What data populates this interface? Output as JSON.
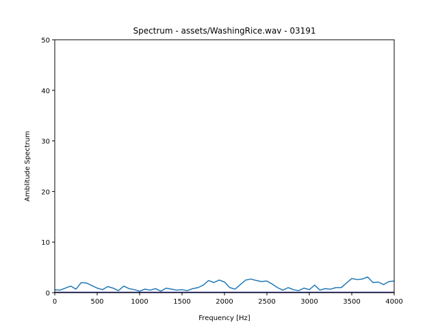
{
  "chart_data": {
    "type": "line",
    "title": "Spectrum - assets/WashingRice.wav - 03191",
    "xlabel": "Frequency [Hz]",
    "ylabel": "Amblitude Spectrum",
    "xlim": [
      0,
      4000
    ],
    "ylim": [
      0,
      50
    ],
    "xticks": [
      0,
      500,
      1000,
      1500,
      2000,
      2500,
      3000,
      3500,
      4000
    ],
    "yticks": [
      0,
      10,
      20,
      30,
      40,
      50
    ],
    "grid": false,
    "colors": {
      "series": "#1f77b4",
      "baseline": "#000080",
      "axes": "#000000"
    },
    "baseline_value": 0,
    "series": [
      {
        "x": [
          0,
          62.5,
          125,
          187.5,
          250,
          312.5,
          375,
          437.5,
          500,
          562.5,
          625,
          687.5,
          750,
          812.5,
          875,
          937.5,
          1000,
          1062.5,
          1125,
          1187.5,
          1250,
          1312.5,
          1375,
          1437.5,
          1500,
          1562.5,
          1625,
          1687.5,
          1750,
          1812.5,
          1875,
          1937.5,
          2000,
          2062.5,
          2125,
          2187.5,
          2250,
          2312.5,
          2375,
          2437.5,
          2500,
          2562.5,
          2625,
          2687.5,
          2750,
          2812.5,
          2875,
          2937.5,
          3000,
          3062.5,
          3125,
          3187.5,
          3250,
          3312.5,
          3375,
          3437.5,
          3500,
          3562.5,
          3625,
          3687.5,
          3750,
          3812.5,
          3875,
          3937.5,
          4000
        ],
        "y": [
          0.6,
          0.5,
          0.9,
          1.3,
          0.7,
          2.0,
          1.9,
          1.4,
          0.9,
          0.6,
          1.2,
          0.9,
          0.4,
          1.3,
          0.8,
          0.6,
          0.3,
          0.7,
          0.5,
          0.8,
          0.3,
          0.9,
          0.7,
          0.5,
          0.6,
          0.4,
          0.8,
          1.0,
          1.5,
          2.4,
          2.0,
          2.5,
          2.1,
          1.0,
          0.7,
          1.6,
          2.5,
          2.7,
          2.4,
          2.2,
          2.3,
          1.7,
          1.0,
          0.5,
          1.0,
          0.6,
          0.4,
          0.9,
          0.6,
          1.5,
          0.5,
          0.8,
          0.7,
          1.0,
          1.0,
          1.9,
          2.8,
          2.6,
          2.7,
          3.1,
          2.0,
          2.1,
          1.6,
          2.2,
          2.3
        ]
      }
    ]
  }
}
